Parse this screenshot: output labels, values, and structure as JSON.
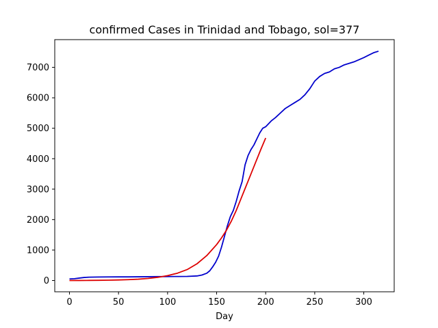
{
  "chart_data": {
    "type": "line",
    "title": "confirmed Cases in Trinidad and Tobago, sol=377",
    "xlabel": "Day",
    "ylabel": "",
    "xlim": [
      -15,
      331
    ],
    "ylim": [
      -370,
      7910
    ],
    "xticks": [
      0,
      50,
      100,
      150,
      200,
      250,
      300
    ],
    "yticks": [
      0,
      1000,
      2000,
      3000,
      4000,
      5000,
      6000,
      7000
    ],
    "grid": false,
    "series": [
      {
        "color": "#0000cc",
        "x": [
          0,
          5,
          10,
          15,
          20,
          30,
          40,
          50,
          60,
          70,
          80,
          90,
          100,
          110,
          120,
          130,
          135,
          140,
          143,
          146,
          149,
          152,
          155,
          158,
          161,
          164,
          167,
          170,
          173,
          176,
          179,
          182,
          185,
          188,
          191,
          194,
          197,
          200,
          203,
          206,
          210,
          215,
          220,
          225,
          230,
          235,
          240,
          245,
          248,
          250,
          255,
          260,
          265,
          270,
          275,
          280,
          285,
          290,
          295,
          300,
          305,
          310,
          315
        ],
        "y": [
          50,
          60,
          80,
          100,
          110,
          115,
          118,
          120,
          120,
          122,
          125,
          128,
          130,
          132,
          135,
          150,
          180,
          240,
          320,
          450,
          600,
          800,
          1100,
          1450,
          1800,
          2100,
          2300,
          2600,
          2950,
          3250,
          3800,
          4100,
          4300,
          4450,
          4650,
          4850,
          5000,
          5050,
          5150,
          5250,
          5350,
          5500,
          5650,
          5750,
          5850,
          5950,
          6100,
          6300,
          6450,
          6550,
          6700,
          6800,
          6850,
          6950,
          7000,
          7080,
          7130,
          7180,
          7250,
          7320,
          7400,
          7480,
          7530
        ]
      },
      {
        "color": "#dd0000",
        "x": [
          0,
          10,
          20,
          30,
          40,
          50,
          60,
          70,
          80,
          90,
          100,
          110,
          120,
          130,
          140,
          150,
          155,
          160,
          165,
          170,
          175,
          180,
          185,
          190,
          195,
          200
        ],
        "y": [
          0,
          2,
          4,
          7,
          11,
          18,
          28,
          44,
          68,
          105,
          160,
          240,
          360,
          550,
          820,
          1180,
          1400,
          1650,
          1950,
          2300,
          2700,
          3100,
          3500,
          3900,
          4300,
          4680
        ]
      }
    ]
  }
}
